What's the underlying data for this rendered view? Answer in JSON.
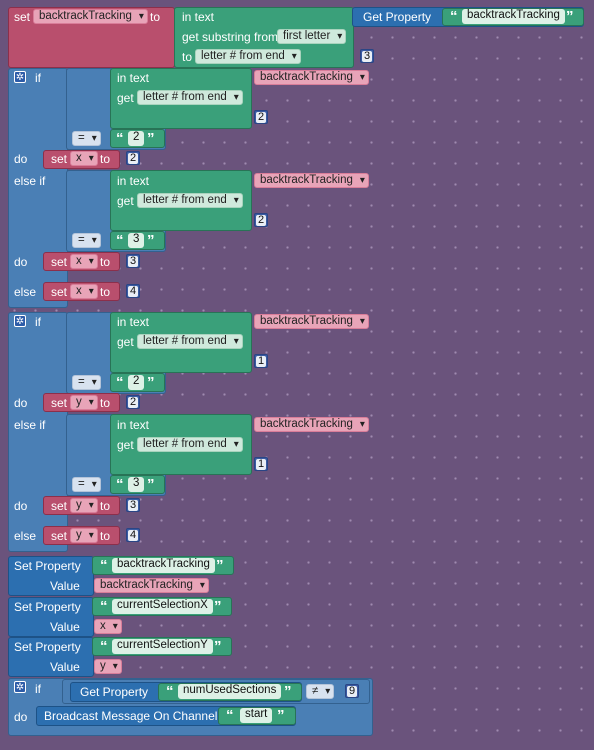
{
  "colors": {
    "variable": "#b94f6d",
    "text": "#3aa07a",
    "control": "#4a7fb5",
    "property": "#2c6fb0",
    "canvas": "#6a537c"
  },
  "icons": {
    "mutator": "gear-icon"
  },
  "kw": {
    "set": "set",
    "to": "to",
    "in_text": "in text",
    "get_substring_from": "get substring from",
    "get": "get",
    "if": "if",
    "do": "do",
    "else_if": "else if",
    "else": "else",
    "get_property": "Get Property",
    "set_property": "Set Property",
    "value": "Value",
    "broadcast": "Broadcast Message On Channel",
    "open_q": "“",
    "close_q": "”"
  },
  "block1": {
    "var": "backtrackTracking",
    "prop": "backtrackTracking",
    "from_opt": "first letter",
    "to_opt": "letter # from end",
    "n": "3"
  },
  "if1": {
    "text_var": "backtrackTracking",
    "get_opt": "letter # from end",
    "idx1": "2",
    "op1": "=",
    "cmp1": "2",
    "set_var1": "x",
    "val1": "2",
    "text_var2": "backtrackTracking",
    "get_opt2": "letter # from end",
    "idx2": "2",
    "op2": "=",
    "cmp2": "3",
    "set_var2": "x",
    "val2": "3",
    "set_var3": "x",
    "val3": "4"
  },
  "if2": {
    "text_var": "backtrackTracking",
    "get_opt": "letter # from end",
    "idx1": "1",
    "op1": "=",
    "cmp1": "2",
    "set_var1": "y",
    "val1": "2",
    "text_var2": "backtrackTracking",
    "get_opt2": "letter # from end",
    "idx2": "1",
    "op2": "=",
    "cmp2": "3",
    "set_var2": "y",
    "val2": "3",
    "set_var3": "y",
    "val3": "4"
  },
  "props": [
    {
      "name": "backtrackTracking",
      "value": "backtrackTracking"
    },
    {
      "name": "currentSelectionX",
      "value": "x"
    },
    {
      "name": "currentSelectionY",
      "value": "y"
    }
  ],
  "if3": {
    "prop": "numUsedSections",
    "op": "≠",
    "n": "9",
    "channel": "start"
  }
}
